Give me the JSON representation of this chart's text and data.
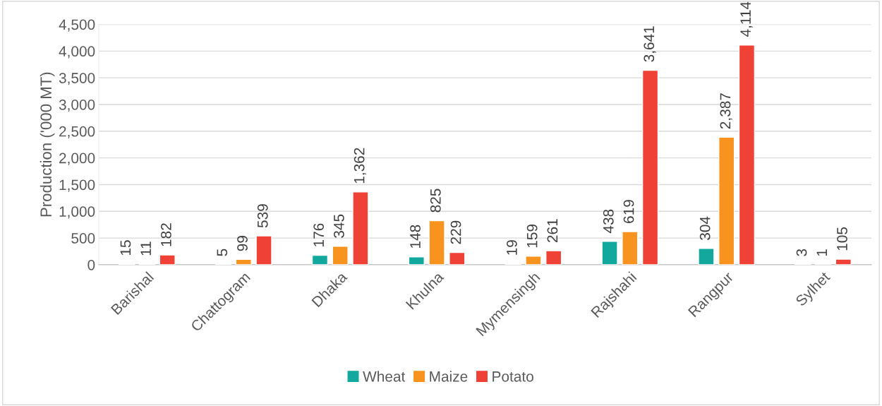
{
  "chart_data": {
    "type": "bar",
    "ylabel": "Production ('000 MT)",
    "categories": [
      "Barishal",
      "Chattogram",
      "Dhaka",
      "Khulna",
      "Mymensingh",
      "Rajshahi",
      "Rangpur",
      "Sylhet"
    ],
    "series": [
      {
        "name": "Wheat",
        "color": "#13a89e",
        "values": [
          15,
          5,
          176,
          148,
          19,
          438,
          304,
          3
        ],
        "value_labels": [
          "15",
          "5",
          "176",
          "148",
          "19",
          "438",
          "304",
          "3"
        ]
      },
      {
        "name": "Maize",
        "color": "#f7931e",
        "values": [
          11,
          99,
          345,
          825,
          159,
          619,
          2387,
          1
        ],
        "value_labels": [
          "11",
          "99",
          "345",
          "825",
          "159",
          "619",
          "2,387",
          "1"
        ]
      },
      {
        "name": "Potato",
        "color": "#ef4136",
        "values": [
          182,
          539,
          1362,
          229,
          261,
          3641,
          4114,
          105
        ],
        "value_labels": [
          "182",
          "539",
          "1,362",
          "229",
          "261",
          "3,641",
          "4,114",
          "105"
        ]
      }
    ],
    "ylim": [
      0,
      4500
    ],
    "yticks": [
      0,
      500,
      {
        "value": 1000,
        "label": "1,000"
      },
      {
        "value": 1500,
        "label": "1,500"
      },
      {
        "value": 2000,
        "label": "2,000"
      },
      {
        "value": 2500,
        "label": "2,500"
      },
      {
        "value": 3000,
        "label": "3,000"
      },
      {
        "value": 3500,
        "label": "3,500"
      },
      {
        "value": 4000,
        "label": "4,000"
      },
      {
        "value": 4500,
        "label": "4,500"
      }
    ],
    "grid": "y",
    "legend": "bottom"
  }
}
